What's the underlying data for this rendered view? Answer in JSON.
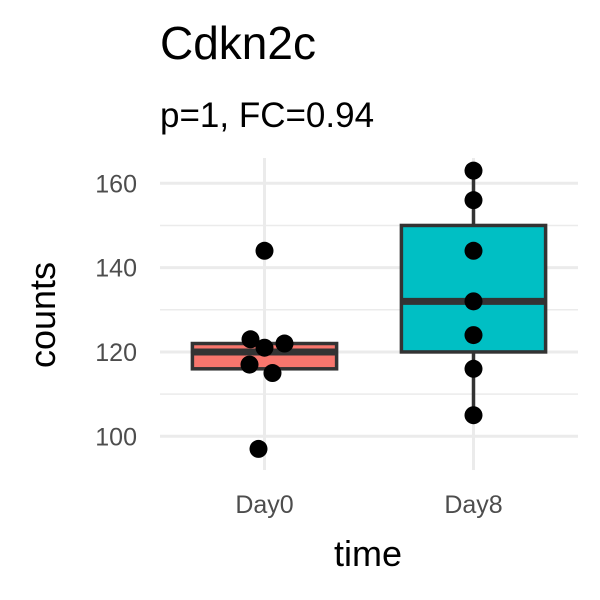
{
  "chart_data": {
    "type": "box",
    "title": "Cdkn2c",
    "subtitle": "p=1, FC=0.94",
    "xlabel": "time",
    "ylabel": "counts",
    "categories": [
      "Day0",
      "Day8"
    ],
    "yticks": [
      100,
      120,
      140,
      160
    ],
    "ylim": [
      92,
      166
    ],
    "grid": true,
    "series": [
      {
        "category": "Day0",
        "color": "#F8766D",
        "box": {
          "min": 116,
          "q1": 116,
          "median": 120,
          "q3": 122,
          "max": 122
        },
        "points": [
          97,
          115,
          117,
          121,
          122,
          123,
          144
        ]
      },
      {
        "category": "Day8",
        "color": "#00BFC4",
        "box": {
          "min": 105,
          "q1": 120,
          "median": 132,
          "q3": 150,
          "max": 163
        },
        "points": [
          105,
          116,
          124,
          132,
          144,
          156,
          163
        ]
      }
    ]
  }
}
